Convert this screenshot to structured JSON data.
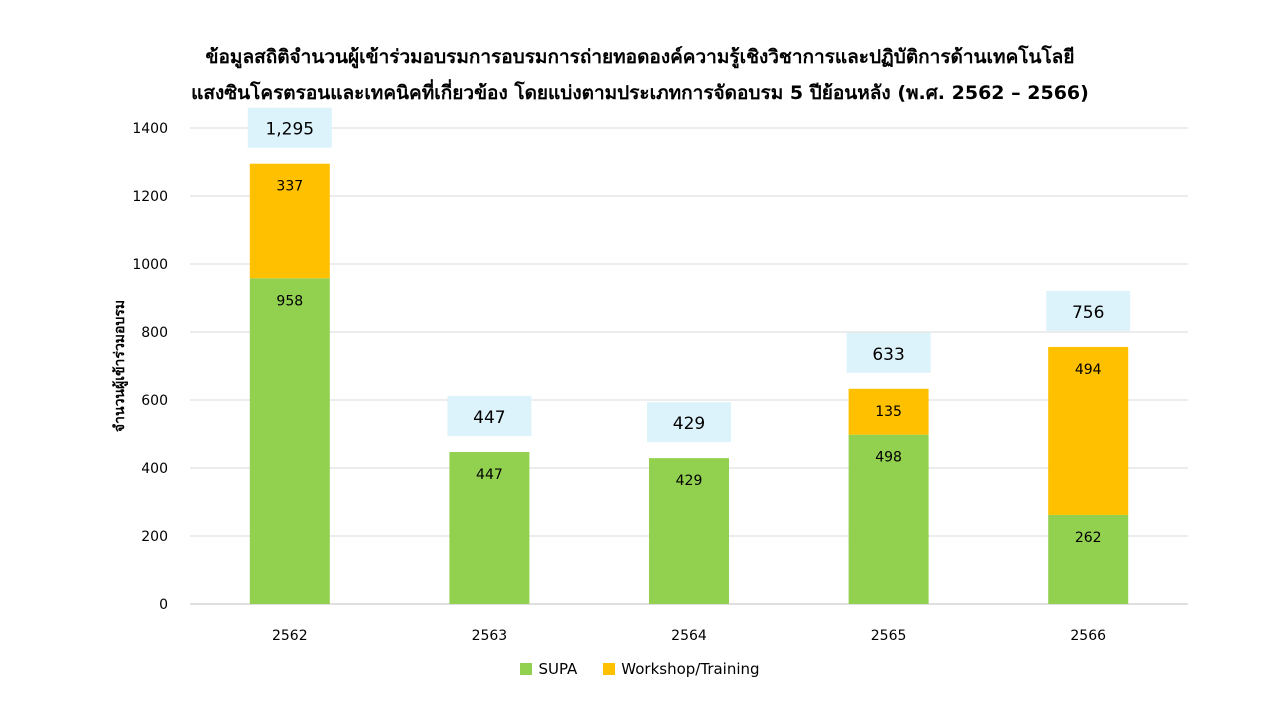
{
  "chart_data": {
    "type": "bar",
    "stacked": true,
    "title_line1": "ข้อมูลสถิติจำนวนผู้เข้าร่วมอบรมการอบรมการถ่ายทอดองค์ความรู้เชิงวิชาการและปฏิบัติการด้านเทคโนโลยี",
    "title_line2": "แสงซินโครตรอนและเทคนิคที่เกี่ยวข้อง โดยแบ่งตามประเภทการจัดอบรม 5 ปีย้อนหลัง (พ.ศ. 2562 – 2566)",
    "xlabel": "",
    "ylabel": "จำนวนผู้เข้าร่วมอบรม",
    "ylim": [
      0,
      1400
    ],
    "yticks": [
      0,
      200,
      400,
      600,
      800,
      1000,
      1200,
      1400
    ],
    "categories": [
      "2562",
      "2563",
      "2564",
      "2565",
      "2566"
    ],
    "series": [
      {
        "name": "SUPA",
        "color": "#92d050",
        "values": [
          958,
          447,
          429,
          498,
          262
        ]
      },
      {
        "name": "Workshop/Training",
        "color": "#ffc000",
        "values": [
          337,
          null,
          null,
          135,
          494
        ]
      }
    ],
    "totals": [
      "1,295",
      "447",
      "429",
      "633",
      "756"
    ],
    "total_box_color": "#ddf3fb",
    "grid": true,
    "legend_position": "bottom"
  }
}
